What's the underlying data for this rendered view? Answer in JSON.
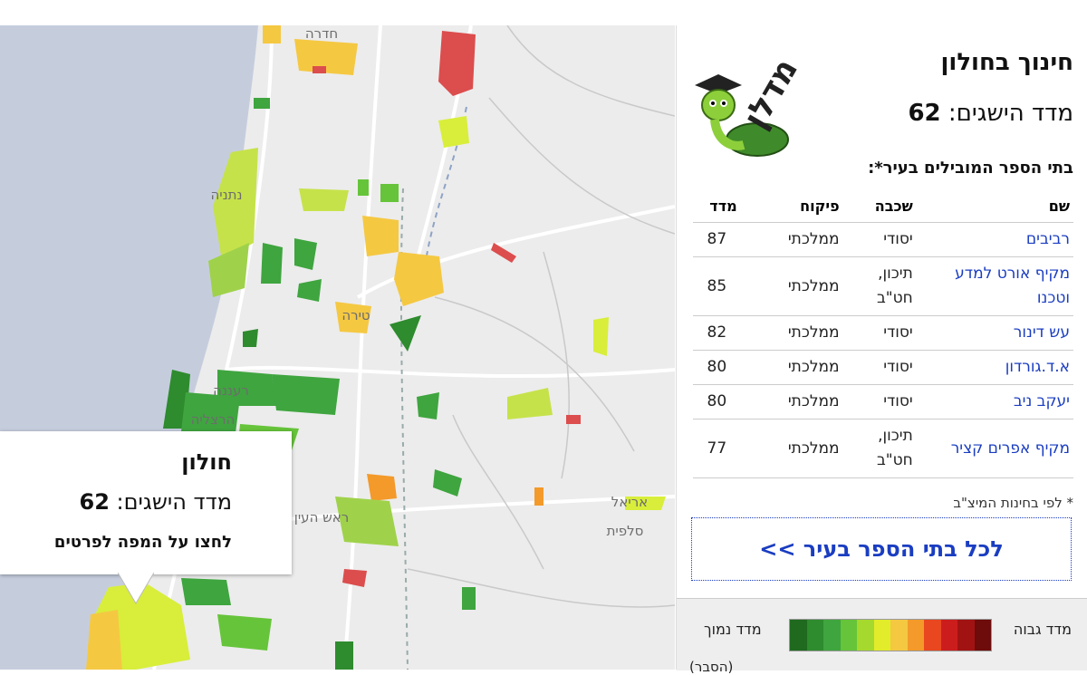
{
  "map": {
    "labels": [
      "חדרה",
      "נתניה",
      "טירה",
      "רעננה",
      "הרצליה",
      "ראש העין",
      "אריאל",
      "סלפית"
    ]
  },
  "popup": {
    "city": "חולון",
    "index_label": "מדד הישגים:",
    "index_value": 62,
    "hint": "לחצו על המפה לפרטים"
  },
  "panel": {
    "title": "חינוך בחולון",
    "index_label": "מדד הישגים:",
    "index_value": 62,
    "logo": "מדלן",
    "section": "בתי הספר המובילים בעיר*:",
    "table": {
      "headers": [
        "שם",
        "שכבה",
        "פיקוח",
        "מדד"
      ],
      "rows": [
        [
          "רביבים",
          "יסודי",
          "ממלכתי",
          87
        ],
        [
          "מקיף אורט למדע וטכנו",
          "תיכון, חט\"ב",
          "ממלכתי",
          85
        ],
        [
          "עש דינור",
          "יסודי",
          "ממלכתי",
          82
        ],
        [
          "א.ד.גורדון",
          "יסודי",
          "ממלכתי",
          80
        ],
        [
          "יעקב ניב",
          "יסודי",
          "ממלכתי",
          80
        ],
        [
          "מקיף אפרים קציר",
          "תיכון, חט\"ב",
          "ממלכתי",
          77
        ]
      ]
    },
    "footnote": "* לפי בחינות המיצ\"ב",
    "button": "לכל בתי הספר בעיר >>",
    "legend": {
      "high": "מדד גבוה",
      "low": "מדד נמוך",
      "explain": "(הסבר)",
      "colors": [
        "#1f6a1f",
        "#2e8b2e",
        "#3fa53f",
        "#66c43a",
        "#a6d92e",
        "#e2ec2b",
        "#f5c842",
        "#f39a2a",
        "#e8471f",
        "#cc1d1d",
        "#a11313",
        "#6e0b0b"
      ]
    }
  }
}
